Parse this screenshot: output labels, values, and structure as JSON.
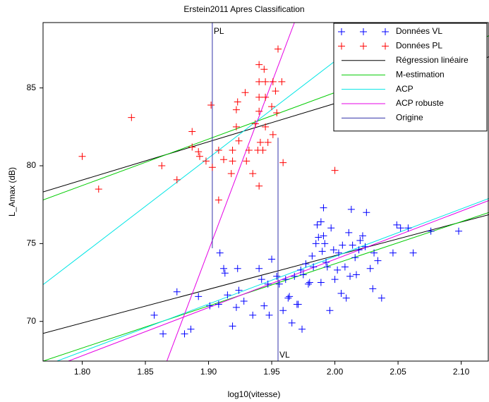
{
  "chart_data": {
    "type": "scatter",
    "title": "Erstein2011 Apres Classification",
    "x_label": "log10(vitesse)",
    "y_label": "L_Amax (dB)",
    "xlim": [
      1.769,
      2.122
    ],
    "ylim": [
      67.45,
      89.2
    ],
    "xticks": [
      {
        "value": 1.8,
        "label": "1.80"
      },
      {
        "value": 1.85,
        "label": "1.85"
      },
      {
        "value": 1.9,
        "label": "1.90"
      },
      {
        "value": 1.95,
        "label": "1.95"
      },
      {
        "value": 2.0,
        "label": "2.00"
      },
      {
        "value": 2.05,
        "label": "2.05"
      },
      {
        "value": 2.1,
        "label": "2.10"
      }
    ],
    "yticks": [
      70,
      75,
      80,
      85
    ],
    "annotations": [
      "PL",
      "VL"
    ],
    "series": [
      {
        "name": "Données VL",
        "type": "scatter",
        "color": "#0000ff",
        "x": [
          1.857,
          1.864,
          1.875,
          1.881,
          1.886,
          1.892,
          1.901,
          1.908,
          1.909,
          1.912,
          1.913,
          1.915,
          1.919,
          1.922,
          1.923,
          1.924,
          1.928,
          1.935,
          1.94,
          1.942,
          1.944,
          1.947,
          1.948,
          1.95,
          1.954,
          1.956,
          1.959,
          1.961,
          1.963,
          1.964,
          1.966,
          1.968,
          1.97,
          1.971,
          1.973,
          1.974,
          1.975,
          1.977,
          1.979,
          1.98,
          1.982,
          1.983,
          1.985,
          1.986,
          1.987,
          1.989,
          1.989,
          1.99,
          1.991,
          1.991,
          1.992,
          1.993,
          1.994,
          1.996,
          1.997,
          1.999,
          2.0,
          2.002,
          2.003,
          2.005,
          2.006,
          2.008,
          2.009,
          2.011,
          2.012,
          2.013,
          2.014,
          2.016,
          2.017,
          2.019,
          2.02,
          2.022,
          2.024,
          2.025,
          2.028,
          2.03,
          2.031,
          2.034,
          2.037,
          2.046,
          2.049,
          2.052,
          2.058,
          2.062,
          2.076,
          2.098
        ],
        "values": [
          70.4,
          69.2,
          71.9,
          69.2,
          69.5,
          71.6,
          71.0,
          71.1,
          74.4,
          73.4,
          73.1,
          71.7,
          69.7,
          70.9,
          73.4,
          72.0,
          71.3,
          70.4,
          73.4,
          72.7,
          71.0,
          72.4,
          70.4,
          74.0,
          72.9,
          72.4,
          70.7,
          72.7,
          71.5,
          71.6,
          69.9,
          72.9,
          71.1,
          71.1,
          73.3,
          69.5,
          73.0,
          73.7,
          72.4,
          72.5,
          74.2,
          73.5,
          75.0,
          76.2,
          75.4,
          72.5,
          76.4,
          74.5,
          75.5,
          77.3,
          75.0,
          73.8,
          73.5,
          70.7,
          76.0,
          74.6,
          72.7,
          73.3,
          74.4,
          71.8,
          74.9,
          73.5,
          71.5,
          75.7,
          72.9,
          77.2,
          74.9,
          74.1,
          73.0,
          74.6,
          75.2,
          75.5,
          74.8,
          77.0,
          73.4,
          72.1,
          74.4,
          73.9,
          71.5,
          74.4,
          76.2,
          76.0,
          76.0,
          74.4,
          75.8,
          75.8
        ]
      },
      {
        "name": "Données PL",
        "type": "scatter",
        "color": "#ff0000",
        "x": [
          1.8,
          1.813,
          1.839,
          1.863,
          1.875,
          1.887,
          1.887,
          1.892,
          1.893,
          1.898,
          1.902,
          1.903,
          1.908,
          1.908,
          1.912,
          1.918,
          1.919,
          1.919,
          1.922,
          1.922,
          1.923,
          1.924,
          1.929,
          1.93,
          1.932,
          1.935,
          1.937,
          1.939,
          1.94,
          1.94,
          1.94,
          1.94,
          1.94,
          1.941,
          1.943,
          1.944,
          1.945,
          1.945,
          1.945,
          1.947,
          1.95,
          1.951,
          1.951,
          1.953,
          1.954,
          1.955,
          1.958,
          1.959,
          2.0
        ],
        "values": [
          80.6,
          78.5,
          83.1,
          80.0,
          79.1,
          82.2,
          81.2,
          80.9,
          80.6,
          80.3,
          83.9,
          79.9,
          77.8,
          81.0,
          80.4,
          79.5,
          81.0,
          80.3,
          82.5,
          83.6,
          84.1,
          81.6,
          84.7,
          80.3,
          81.0,
          79.5,
          82.7,
          81.0,
          78.7,
          86.5,
          85.4,
          84.4,
          83.5,
          81.5,
          81.0,
          86.2,
          85.4,
          82.5,
          84.4,
          81.5,
          83.8,
          82.0,
          85.4,
          84.8,
          83.4,
          87.5,
          85.4,
          80.2,
          79.7
        ]
      },
      {
        "name": "Régression linéaire",
        "type": "line",
        "color": "#000000",
        "x": [
          1.769,
          2.122,
          null,
          1.769,
          2.122
        ],
        "values": [
          78.32,
          87.0,
          null,
          69.23,
          76.86
        ]
      },
      {
        "name": "M-estimation",
        "type": "line",
        "color": "#00cc00",
        "x": [
          1.769,
          2.122,
          null,
          1.769,
          2.122
        ],
        "values": [
          77.8,
          88.35,
          null,
          67.45,
          77.0
        ]
      },
      {
        "name": "ACP",
        "type": "line",
        "color": "#00e5e5",
        "x": [
          1.769,
          2.122,
          null,
          1.78,
          2.122
        ],
        "values": [
          72.36,
          94.3,
          null,
          67.45,
          77.9
        ]
      },
      {
        "name": "ACP robuste",
        "type": "line",
        "color": "#e500e5",
        "x": [
          1.867,
          1.968,
          null,
          1.789,
          2.122
        ],
        "values": [
          67.45,
          89.2,
          null,
          67.45,
          77.77
        ]
      },
      {
        "name": "Origine",
        "type": "line",
        "color": "#3333aa",
        "x": [
          1.903,
          1.903,
          null,
          1.955,
          1.955
        ],
        "values": [
          89.2,
          74.7,
          null,
          81.8,
          67.45
        ]
      }
    ]
  }
}
